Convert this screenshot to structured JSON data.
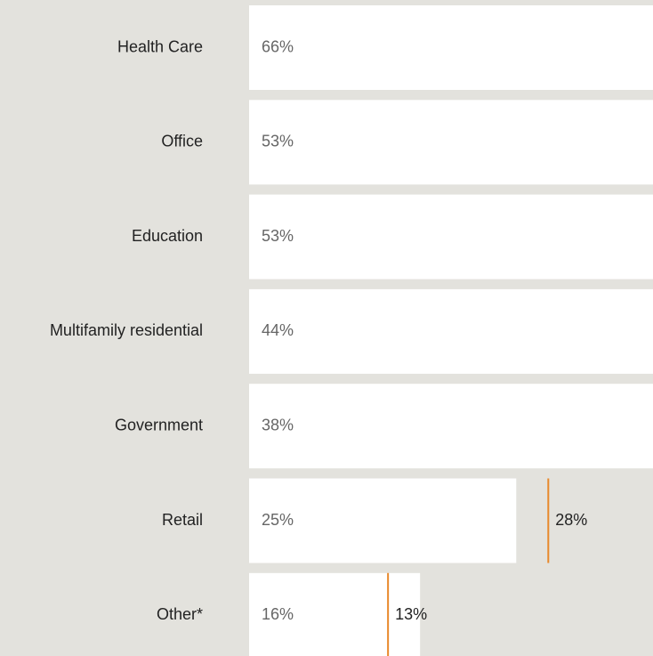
{
  "chart_data": {
    "type": "bar",
    "orientation": "horizontal",
    "categories": [
      "Health Care",
      "Office",
      "Education",
      "Multifamily residential",
      "Government",
      "Retail",
      "Other*"
    ],
    "series": [
      {
        "color": "#ffffff",
        "values": [
          66,
          53,
          53,
          44,
          38,
          25,
          16
        ],
        "value_labels": [
          "66%",
          "53%",
          "53%",
          "44%",
          "38%",
          "25%",
          "16%"
        ]
      },
      {
        "color": "#e8892b",
        "values": [
          null,
          null,
          null,
          null,
          null,
          28,
          13
        ],
        "value_labels": [
          null,
          null,
          null,
          null,
          null,
          "28%",
          "13%"
        ]
      }
    ],
    "xlim": [
      0,
      37.8
    ]
  }
}
